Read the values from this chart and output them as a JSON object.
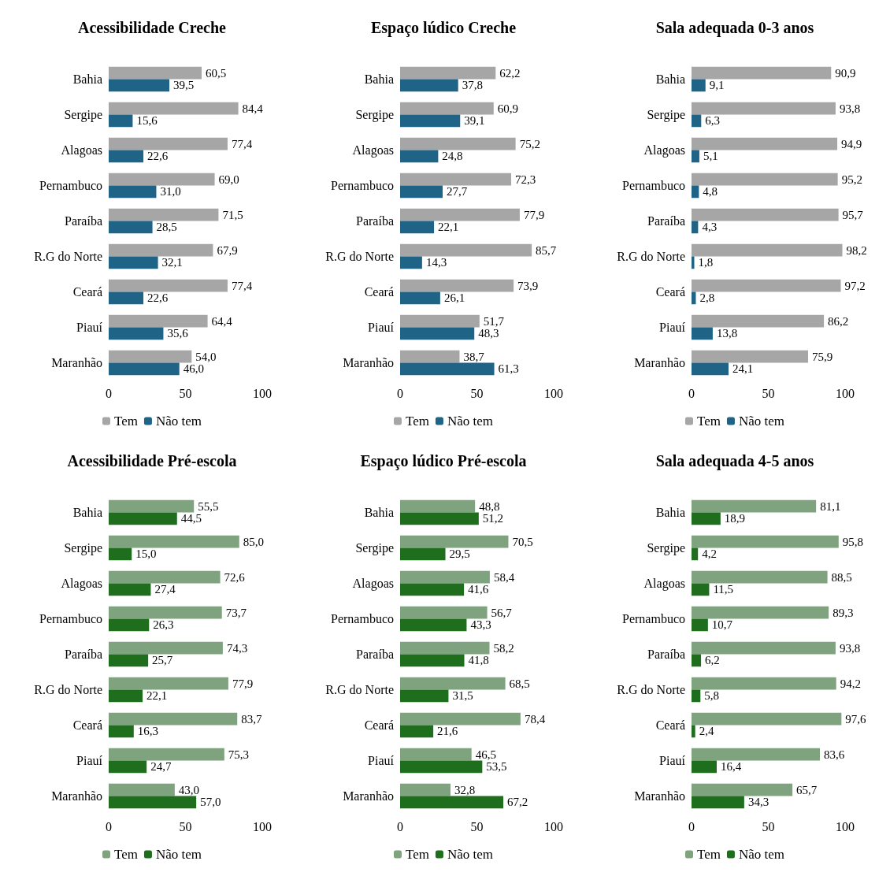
{
  "chart_data": [
    {
      "type": "bar",
      "orientation": "horizontal",
      "title": "Acessibilidade Creche",
      "categories": [
        "Bahia",
        "Sergipe",
        "Alagoas",
        "Pernambuco",
        "Paraíba",
        "R.G do Norte",
        "Ceará",
        "Piauí",
        "Maranhão"
      ],
      "xlim": [
        0,
        100
      ],
      "xticks": [
        0,
        50,
        100
      ],
      "legend": "bottom",
      "series": [
        {
          "name": "Tem",
          "color": "#a6a6a6",
          "values": [
            60.5,
            84.4,
            77.4,
            69.0,
            71.5,
            67.9,
            77.4,
            64.4,
            54.0
          ],
          "value_labels": [
            "60,5",
            "84,4",
            "77,4",
            "69,0",
            "71,5",
            "67,9",
            "77,4",
            "64,4",
            "54,0"
          ]
        },
        {
          "name": "Não tem",
          "color": "#1f6387",
          "values": [
            39.5,
            15.6,
            22.6,
            31.0,
            28.5,
            32.1,
            22.6,
            35.6,
            46.0
          ],
          "value_labels": [
            "39,5",
            "15,6",
            "22,6",
            "31,0",
            "28,5",
            "32,1",
            "22,6",
            "35,6",
            "46,0"
          ]
        }
      ]
    },
    {
      "type": "bar",
      "orientation": "horizontal",
      "title": "Espaço lúdico Creche",
      "categories": [
        "Bahia",
        "Sergipe",
        "Alagoas",
        "Pernambuco",
        "Paraíba",
        "R.G do Norte",
        "Ceará",
        "Piauí",
        "Maranhão"
      ],
      "xlim": [
        0,
        100
      ],
      "xticks": [
        0,
        50,
        100
      ],
      "legend": "bottom",
      "series": [
        {
          "name": "Tem",
          "color": "#a6a6a6",
          "values": [
            62.2,
            60.9,
            75.2,
            72.3,
            77.9,
            85.7,
            73.9,
            51.7,
            38.7
          ],
          "value_labels": [
            "62,2",
            "60,9",
            "75,2",
            "72,3",
            "77,9",
            "85,7",
            "73,9",
            "51,7",
            "38,7"
          ]
        },
        {
          "name": "Não tem",
          "color": "#1f6387",
          "values": [
            37.8,
            39.1,
            24.8,
            27.7,
            22.1,
            14.3,
            26.1,
            48.3,
            61.3
          ],
          "value_labels": [
            "37,8",
            "39,1",
            "24,8",
            "27,7",
            "22,1",
            "14,3",
            "26,1",
            "48,3",
            "61,3"
          ]
        }
      ]
    },
    {
      "type": "bar",
      "orientation": "horizontal",
      "title": "Sala adequada 0-3 anos",
      "categories": [
        "Bahia",
        "Sergipe",
        "Alagoas",
        "Pernambuco",
        "Paraíba",
        "R.G do Norte",
        "Ceará",
        "Piauí",
        "Maranhão"
      ],
      "xlim": [
        0,
        100
      ],
      "xticks": [
        0,
        50,
        100
      ],
      "legend": "bottom",
      "series": [
        {
          "name": "Tem",
          "color": "#a6a6a6",
          "values": [
            90.9,
            93.8,
            94.9,
            95.2,
            95.7,
            98.2,
            97.2,
            86.2,
            75.9
          ],
          "value_labels": [
            "90,9",
            "93,8",
            "94,9",
            "95,2",
            "95,7",
            "98,2",
            "97,2",
            "86,2",
            "75,9"
          ]
        },
        {
          "name": "Não tem",
          "color": "#1f6387",
          "values": [
            9.1,
            6.3,
            5.1,
            4.8,
            4.3,
            1.8,
            2.8,
            13.8,
            24.1
          ],
          "value_labels": [
            "9,1",
            "6,3",
            "5,1",
            "4,8",
            "4,3",
            "1,8",
            "2,8",
            "13,8",
            "24,1"
          ]
        }
      ]
    },
    {
      "type": "bar",
      "orientation": "horizontal",
      "title": "Acessibilidade Pré-escola",
      "categories": [
        "Bahia",
        "Sergipe",
        "Alagoas",
        "Pernambuco",
        "Paraíba",
        "R.G do Norte",
        "Ceará",
        "Piauí",
        "Maranhão"
      ],
      "xlim": [
        0,
        100
      ],
      "xticks": [
        0,
        50,
        100
      ],
      "legend": "bottom",
      "series": [
        {
          "name": "Tem",
          "color": "#7fa37f",
          "values": [
            55.5,
            85.0,
            72.6,
            73.7,
            74.3,
            77.9,
            83.7,
            75.3,
            43.0
          ],
          "value_labels": [
            "55,5",
            "85,0",
            "72,6",
            "73,7",
            "74,3",
            "77,9",
            "83,7",
            "75,3",
            "43,0"
          ]
        },
        {
          "name": "Não tem",
          "color": "#1e6e1e",
          "values": [
            44.5,
            15.0,
            27.4,
            26.3,
            25.7,
            22.1,
            16.3,
            24.7,
            57.0
          ],
          "value_labels": [
            "44,5",
            "15,0",
            "27,4",
            "26,3",
            "25,7",
            "22,1",
            "16,3",
            "24,7",
            "57,0"
          ]
        }
      ]
    },
    {
      "type": "bar",
      "orientation": "horizontal",
      "title": "Espaço lúdico Pré-escola",
      "categories": [
        "Bahia",
        "Sergipe",
        "Alagoas",
        "Pernambuco",
        "Paraíba",
        "R.G do Norte",
        "Ceará",
        "Piauí",
        "Maranhão"
      ],
      "xlim": [
        0,
        100
      ],
      "xticks": [
        0,
        50,
        100
      ],
      "legend": "bottom",
      "series": [
        {
          "name": "Tem",
          "color": "#7fa37f",
          "values": [
            48.8,
            70.5,
            58.4,
            56.7,
            58.2,
            68.5,
            78.4,
            46.5,
            32.8
          ],
          "value_labels": [
            "48,8",
            "70,5",
            "58,4",
            "56,7",
            "58,2",
            "68,5",
            "78,4",
            "46,5",
            "32,8"
          ]
        },
        {
          "name": "Não tem",
          "color": "#1e6e1e",
          "values": [
            51.2,
            29.5,
            41.6,
            43.3,
            41.8,
            31.5,
            21.6,
            53.5,
            67.2
          ],
          "value_labels": [
            "51,2",
            "29,5",
            "41,6",
            "43,3",
            "41,8",
            "31,5",
            "21,6",
            "53,5",
            "67,2"
          ]
        }
      ]
    },
    {
      "type": "bar",
      "orientation": "horizontal",
      "title": "Sala adequada 4-5 anos",
      "categories": [
        "Bahia",
        "Sergipe",
        "Alagoas",
        "Pernambuco",
        "Paraíba",
        "R.G do Norte",
        "Ceará",
        "Piauí",
        "Maranhão"
      ],
      "xlim": [
        0,
        100
      ],
      "xticks": [
        0,
        50,
        100
      ],
      "legend": "bottom",
      "series": [
        {
          "name": "Tem",
          "color": "#7fa37f",
          "values": [
            81.1,
            95.8,
            88.5,
            89.3,
            93.8,
            94.2,
            97.6,
            83.6,
            65.7
          ],
          "value_labels": [
            "81,1",
            "95,8",
            "88,5",
            "89,3",
            "93,8",
            "94,2",
            "97,6",
            "83,6",
            "65,7"
          ]
        },
        {
          "name": "Não tem",
          "color": "#1e6e1e",
          "values": [
            18.9,
            4.2,
            11.5,
            10.7,
            6.2,
            5.8,
            2.4,
            16.4,
            34.3
          ],
          "value_labels": [
            "18,9",
            "4,2",
            "11,5",
            "10,7",
            "6,2",
            "5,8",
            "2,4",
            "16,4",
            "34,3"
          ]
        }
      ]
    }
  ]
}
